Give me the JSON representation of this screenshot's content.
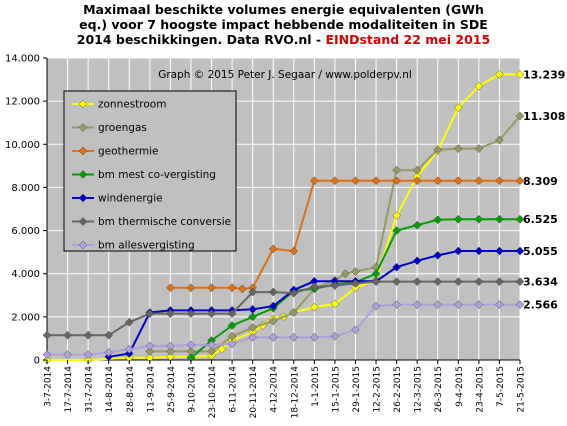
{
  "chart_data": {
    "type": "line",
    "title_lines": [
      "Maximaal beschikte volumes energie equivalenten (GWh",
      "eq.) voor 7 hoogste impact hebbende modaliteiten in SDE",
      "2014 beschikkingen.  Data RVO.nl - "
    ],
    "title_accent": "EINDstand  22 mei 2015",
    "annotation": "Graph © 2015 Peter J. Segaar / www.polderpv.nl",
    "xlabel": "",
    "ylabel": "",
    "ylim": [
      0,
      14000
    ],
    "yticks": [
      "0",
      "2.000",
      "4.000",
      "6.000",
      "8.000",
      "10.000",
      "12.000",
      "14.000"
    ],
    "categories": [
      "3-7-2014",
      "17-7-2014",
      "31-7-2014",
      "14-8-2014",
      "28-8-2014",
      "11-9-2014",
      "25-9-2014",
      "9-10-2014",
      "23-10-2014",
      "6-11-2014",
      "20-11-2014",
      "4-12-2014",
      "18-12-2014",
      "1-1-2015",
      "15-1-2015",
      "29-1-2015",
      "12-2-2015",
      "26-2-2015",
      "12-3-2015",
      "26-3-2015",
      "9-4-2015",
      "23-4-2015",
      "7-5-2015",
      "21-5-2015"
    ],
    "x_start": "2014-07-03",
    "grid": true,
    "legend_position": "top-left",
    "background_color": "#c0c0c0",
    "series": [
      {
        "name": "zonnestroom",
        "color": "#ffff00",
        "points": [
          [
            "2014-07-03",
            0
          ],
          [
            "2014-07-31",
            0
          ],
          [
            "2014-08-28",
            100
          ],
          [
            "2014-09-11",
            100
          ],
          [
            "2014-09-25",
            150
          ],
          [
            "2014-10-09",
            150
          ],
          [
            "2014-10-23",
            200
          ],
          [
            "2014-10-30",
            500
          ],
          [
            "2014-11-06",
            900
          ],
          [
            "2014-11-20",
            1300
          ],
          [
            "2014-11-27",
            1600
          ],
          [
            "2014-12-04",
            1900
          ],
          [
            "2014-12-11",
            2000
          ],
          [
            "2014-12-18",
            2200
          ],
          [
            "2015-01-01",
            2450
          ],
          [
            "2015-01-15",
            2600
          ],
          [
            "2015-01-29",
            3350
          ],
          [
            "2015-02-12",
            3700
          ],
          [
            "2015-02-26",
            6700
          ],
          [
            "2015-03-12",
            8500
          ],
          [
            "2015-03-26",
            9700
          ],
          [
            "2015-04-09",
            11700
          ],
          [
            "2015-04-23",
            12700
          ],
          [
            "2015-05-07",
            13239
          ],
          [
            "2015-05-21",
            13239
          ]
        ]
      },
      {
        "name": "groengas",
        "color": "#999966",
        "points": [
          [
            "2014-09-11",
            400
          ],
          [
            "2014-09-25",
            400
          ],
          [
            "2014-10-09",
            400
          ],
          [
            "2014-10-23",
            400
          ],
          [
            "2014-11-06",
            1100
          ],
          [
            "2014-11-20",
            1500
          ],
          [
            "2014-12-04",
            1800
          ],
          [
            "2014-12-18",
            2200
          ],
          [
            "2015-01-01",
            3300
          ],
          [
            "2015-01-15",
            3700
          ],
          [
            "2015-01-22",
            4000
          ],
          [
            "2015-01-29",
            4100
          ],
          [
            "2015-02-12",
            4300
          ],
          [
            "2015-02-26",
            8800
          ],
          [
            "2015-03-12",
            8800
          ],
          [
            "2015-03-26",
            9750
          ],
          [
            "2015-04-09",
            9800
          ],
          [
            "2015-04-23",
            9800
          ],
          [
            "2015-05-07",
            10200
          ],
          [
            "2015-05-21",
            11308
          ]
        ]
      },
      {
        "name": "geothermie",
        "color": "#e07010",
        "points": [
          [
            "2014-09-25",
            3350
          ],
          [
            "2014-10-09",
            3350
          ],
          [
            "2014-10-23",
            3350
          ],
          [
            "2014-11-06",
            3350
          ],
          [
            "2014-11-13",
            3300
          ],
          [
            "2014-11-20",
            3350
          ],
          [
            "2014-12-04",
            5150
          ],
          [
            "2014-12-18",
            5050
          ],
          [
            "2015-01-01",
            8309
          ],
          [
            "2015-01-15",
            8309
          ],
          [
            "2015-01-29",
            8309
          ],
          [
            "2015-02-12",
            8309
          ],
          [
            "2015-02-26",
            8309
          ],
          [
            "2015-03-12",
            8309
          ],
          [
            "2015-03-26",
            8309
          ],
          [
            "2015-04-09",
            8309
          ],
          [
            "2015-04-23",
            8309
          ],
          [
            "2015-05-07",
            8309
          ],
          [
            "2015-05-21",
            8309
          ]
        ]
      },
      {
        "name": "bm mest co-vergisting",
        "color": "#00a000",
        "points": [
          [
            "2014-10-09",
            100
          ],
          [
            "2014-10-23",
            900
          ],
          [
            "2014-11-06",
            1600
          ],
          [
            "2014-11-20",
            2000
          ],
          [
            "2014-12-04",
            2400
          ],
          [
            "2014-12-18",
            3200
          ],
          [
            "2015-01-01",
            3300
          ],
          [
            "2015-01-15",
            3500
          ],
          [
            "2015-01-29",
            3600
          ],
          [
            "2015-02-12",
            4000
          ],
          [
            "2015-02-26",
            6000
          ],
          [
            "2015-03-12",
            6250
          ],
          [
            "2015-03-26",
            6500
          ],
          [
            "2015-04-09",
            6525
          ],
          [
            "2015-04-23",
            6525
          ],
          [
            "2015-05-07",
            6525
          ],
          [
            "2015-05-21",
            6525
          ]
        ]
      },
      {
        "name": "windenergie",
        "color": "#0000cc",
        "points": [
          [
            "2014-08-14",
            150
          ],
          [
            "2014-08-28",
            300
          ],
          [
            "2014-09-11",
            2200
          ],
          [
            "2014-09-25",
            2300
          ],
          [
            "2014-10-09",
            2300
          ],
          [
            "2014-10-23",
            2300
          ],
          [
            "2014-11-06",
            2300
          ],
          [
            "2014-11-20",
            2350
          ],
          [
            "2014-12-04",
            2500
          ],
          [
            "2014-12-18",
            3250
          ],
          [
            "2015-01-01",
            3650
          ],
          [
            "2015-01-15",
            3650
          ],
          [
            "2015-01-29",
            3650
          ],
          [
            "2015-02-12",
            3650
          ],
          [
            "2015-02-26",
            4300
          ],
          [
            "2015-03-12",
            4600
          ],
          [
            "2015-03-26",
            4850
          ],
          [
            "2015-04-09",
            5055
          ],
          [
            "2015-04-23",
            5055
          ],
          [
            "2015-05-07",
            5055
          ],
          [
            "2015-05-21",
            5055
          ]
        ]
      },
      {
        "name": "bm thermische conversie",
        "color": "#666666",
        "points": [
          [
            "2014-07-03",
            1150
          ],
          [
            "2014-07-17",
            1150
          ],
          [
            "2014-07-31",
            1150
          ],
          [
            "2014-08-14",
            1150
          ],
          [
            "2014-08-28",
            1750
          ],
          [
            "2014-09-11",
            2150
          ],
          [
            "2014-09-25",
            2150
          ],
          [
            "2014-10-09",
            2150
          ],
          [
            "2014-10-23",
            2150
          ],
          [
            "2014-11-06",
            2150
          ],
          [
            "2014-11-20",
            3150
          ],
          [
            "2014-12-04",
            3150
          ],
          [
            "2014-12-18",
            3100
          ],
          [
            "2015-01-01",
            3400
          ],
          [
            "2015-01-15",
            3450
          ],
          [
            "2015-01-29",
            3550
          ],
          [
            "2015-02-12",
            3634
          ],
          [
            "2015-02-26",
            3634
          ],
          [
            "2015-03-12",
            3634
          ],
          [
            "2015-03-26",
            3634
          ],
          [
            "2015-04-09",
            3634
          ],
          [
            "2015-04-23",
            3634
          ],
          [
            "2015-05-07",
            3634
          ],
          [
            "2015-05-21",
            3634
          ]
        ]
      },
      {
        "name": "bm allesvergisting",
        "color": "#b0a0e0",
        "points": [
          [
            "2014-07-03",
            250
          ],
          [
            "2014-07-17",
            250
          ],
          [
            "2014-07-31",
            250
          ],
          [
            "2014-08-14",
            350
          ],
          [
            "2014-08-28",
            500
          ],
          [
            "2014-09-11",
            650
          ],
          [
            "2014-09-25",
            650
          ],
          [
            "2014-10-09",
            700
          ],
          [
            "2014-10-23",
            700
          ],
          [
            "2014-11-06",
            750
          ],
          [
            "2014-11-20",
            1050
          ],
          [
            "2014-12-04",
            1050
          ],
          [
            "2014-12-18",
            1050
          ],
          [
            "2015-01-01",
            1050
          ],
          [
            "2015-01-15",
            1100
          ],
          [
            "2015-01-29",
            1400
          ],
          [
            "2015-02-12",
            2500
          ],
          [
            "2015-02-26",
            2566
          ],
          [
            "2015-03-12",
            2566
          ],
          [
            "2015-03-26",
            2566
          ],
          [
            "2015-04-09",
            2566
          ],
          [
            "2015-04-23",
            2566
          ],
          [
            "2015-05-07",
            2566
          ],
          [
            "2015-05-21",
            2566
          ]
        ]
      }
    ],
    "end_labels": [
      {
        "text": "13.239",
        "value": 13239
      },
      {
        "text": "11.308",
        "value": 11308
      },
      {
        "text": "8.309",
        "value": 8309
      },
      {
        "text": "6.525",
        "value": 6525
      },
      {
        "text": "5.055",
        "value": 5055
      },
      {
        "text": "3.634",
        "value": 3634
      },
      {
        "text": "2.566",
        "value": 2566
      }
    ]
  }
}
